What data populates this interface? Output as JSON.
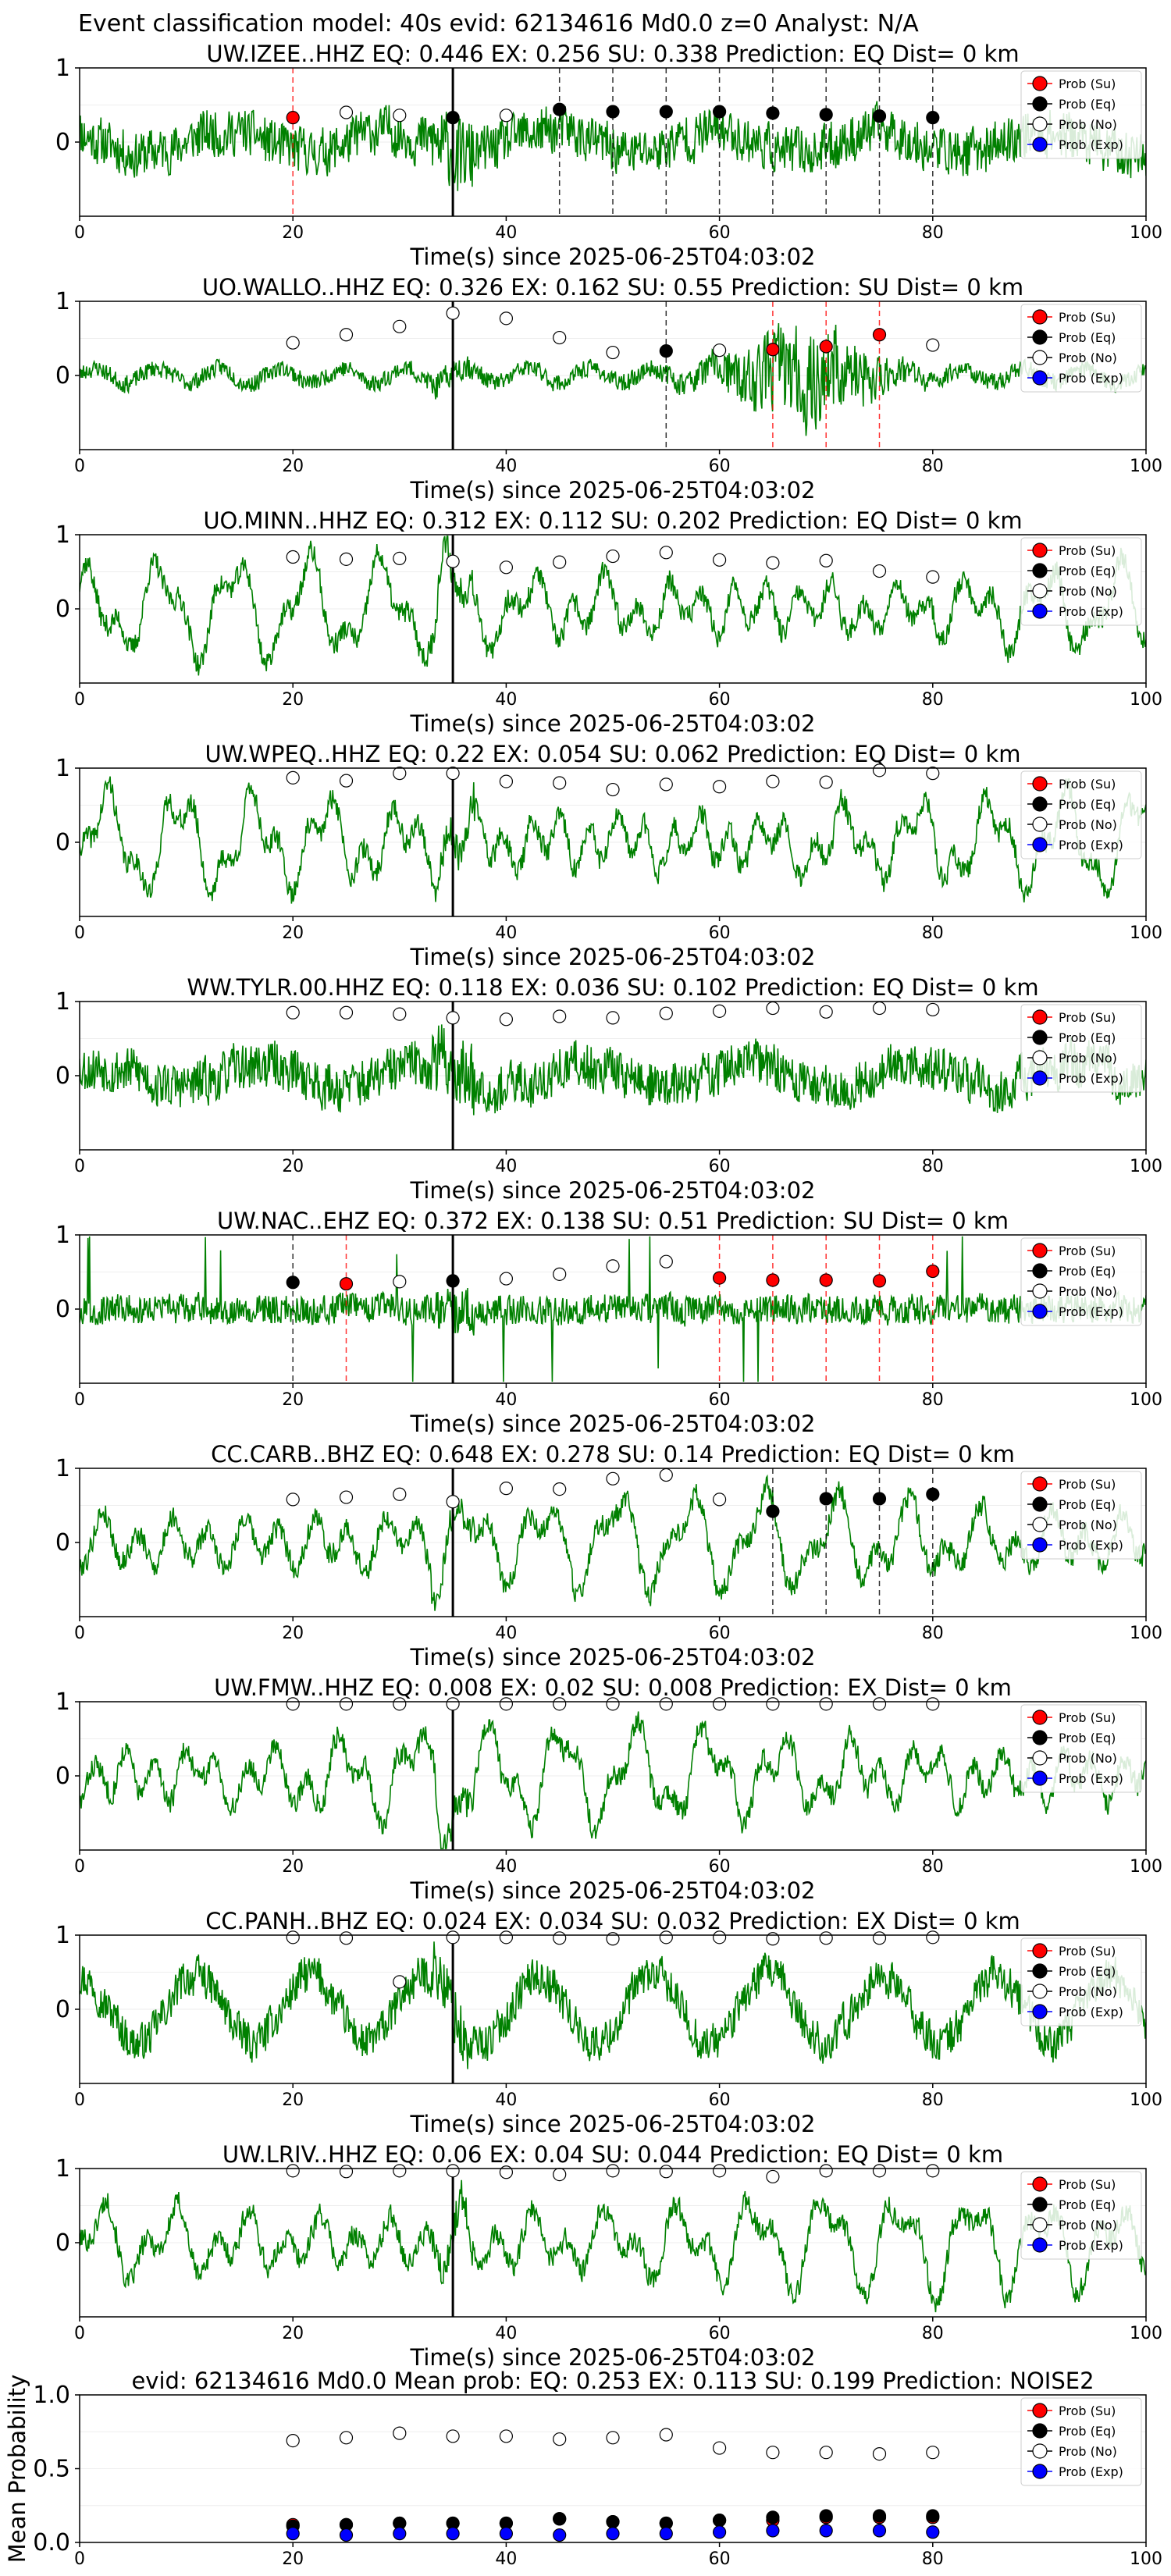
{
  "suptitle": "Event classification model: 40s evid: 62134616 Md0.0 z=0 Analyst: N/A",
  "colors": {
    "waveform": "#008000",
    "su_marker": "#ff0000",
    "eq_marker": "#000000",
    "no_marker": "#ffffff",
    "exp_marker": "#0000ff",
    "su_vline": "#ff0000",
    "eq_vline": "#000000",
    "origin_line": "#000000"
  },
  "chart_data": {
    "type": "line",
    "xlabel": "Time(s) since 2025-06-25T04:03:02",
    "xlim": [
      0,
      100
    ],
    "xticks": [
      0,
      20,
      40,
      60,
      80,
      100
    ],
    "ylim": [
      -1,
      1
    ],
    "yticks": [
      0,
      1
    ],
    "origin_time": 35,
    "window_times": [
      20,
      25,
      30,
      35,
      40,
      45,
      50,
      55,
      60,
      65,
      70,
      75,
      80
    ],
    "legend": {
      "placement": "upper-right",
      "entries": [
        "Prob (Su)",
        "Prob (Eq)",
        "Prob (No)",
        "Prob (Exp)"
      ]
    },
    "panels": [
      {
        "title": "UW.IZEE..HHZ   EQ: 0.446  EX: 0.256  SU: 0.338   Prediction: EQ    Dist= 0 km",
        "trace_seed": 11,
        "trace_style": "noisy",
        "markers": [
          {
            "t": 20,
            "p": 0.33,
            "cls": "su"
          },
          {
            "t": 25,
            "p": 0.4,
            "cls": "no"
          },
          {
            "t": 30,
            "p": 0.36,
            "cls": "no"
          },
          {
            "t": 35,
            "p": 0.33,
            "cls": "eq"
          },
          {
            "t": 40,
            "p": 0.36,
            "cls": "no"
          },
          {
            "t": 45,
            "p": 0.44,
            "cls": "eq"
          },
          {
            "t": 50,
            "p": 0.41,
            "cls": "eq"
          },
          {
            "t": 55,
            "p": 0.41,
            "cls": "eq"
          },
          {
            "t": 60,
            "p": 0.41,
            "cls": "eq"
          },
          {
            "t": 65,
            "p": 0.39,
            "cls": "eq"
          },
          {
            "t": 70,
            "p": 0.37,
            "cls": "eq"
          },
          {
            "t": 75,
            "p": 0.35,
            "cls": "eq"
          },
          {
            "t": 80,
            "p": 0.33,
            "cls": "eq"
          }
        ]
      },
      {
        "title": "UO.WALLO..HHZ   EQ: 0.326  EX: 0.162  SU: 0.55   Prediction: SU    Dist= 0 km",
        "trace_seed": 23,
        "trace_style": "burst",
        "markers": [
          {
            "t": 20,
            "p": 0.44,
            "cls": "no"
          },
          {
            "t": 25,
            "p": 0.55,
            "cls": "no"
          },
          {
            "t": 30,
            "p": 0.66,
            "cls": "no"
          },
          {
            "t": 35,
            "p": 0.84,
            "cls": "no"
          },
          {
            "t": 40,
            "p": 0.77,
            "cls": "no"
          },
          {
            "t": 45,
            "p": 0.51,
            "cls": "no"
          },
          {
            "t": 50,
            "p": 0.31,
            "cls": "no"
          },
          {
            "t": 55,
            "p": 0.33,
            "cls": "eq"
          },
          {
            "t": 60,
            "p": 0.34,
            "cls": "no"
          },
          {
            "t": 65,
            "p": 0.35,
            "cls": "su"
          },
          {
            "t": 70,
            "p": 0.39,
            "cls": "su"
          },
          {
            "t": 75,
            "p": 0.55,
            "cls": "su"
          },
          {
            "t": 80,
            "p": 0.41,
            "cls": "no"
          }
        ]
      },
      {
        "title": "UO.MINN..HHZ   EQ: 0.312  EX: 0.112  SU: 0.202   Prediction: EQ    Dist= 0 km",
        "trace_seed": 37,
        "trace_style": "smooth",
        "markers": [
          {
            "t": 20,
            "p": 0.7,
            "cls": "no"
          },
          {
            "t": 25,
            "p": 0.67,
            "cls": "no"
          },
          {
            "t": 30,
            "p": 0.68,
            "cls": "no"
          },
          {
            "t": 35,
            "p": 0.64,
            "cls": "no"
          },
          {
            "t": 40,
            "p": 0.56,
            "cls": "no"
          },
          {
            "t": 45,
            "p": 0.63,
            "cls": "no"
          },
          {
            "t": 50,
            "p": 0.71,
            "cls": "no"
          },
          {
            "t": 55,
            "p": 0.76,
            "cls": "no"
          },
          {
            "t": 60,
            "p": 0.66,
            "cls": "no"
          },
          {
            "t": 65,
            "p": 0.62,
            "cls": "no"
          },
          {
            "t": 70,
            "p": 0.65,
            "cls": "no"
          },
          {
            "t": 75,
            "p": 0.51,
            "cls": "no"
          },
          {
            "t": 80,
            "p": 0.43,
            "cls": "no"
          }
        ]
      },
      {
        "title": "UW.WPEQ..HHZ   EQ: 0.22  EX: 0.054  SU: 0.062   Prediction: EQ    Dist= 0 km",
        "trace_seed": 41,
        "trace_style": "smooth",
        "markers": [
          {
            "t": 20,
            "p": 0.87,
            "cls": "no"
          },
          {
            "t": 25,
            "p": 0.83,
            "cls": "no"
          },
          {
            "t": 30,
            "p": 0.93,
            "cls": "no"
          },
          {
            "t": 35,
            "p": 0.93,
            "cls": "no"
          },
          {
            "t": 40,
            "p": 0.82,
            "cls": "no"
          },
          {
            "t": 45,
            "p": 0.8,
            "cls": "no"
          },
          {
            "t": 50,
            "p": 0.71,
            "cls": "no"
          },
          {
            "t": 55,
            "p": 0.78,
            "cls": "no"
          },
          {
            "t": 60,
            "p": 0.75,
            "cls": "no"
          },
          {
            "t": 65,
            "p": 0.82,
            "cls": "no"
          },
          {
            "t": 70,
            "p": 0.81,
            "cls": "no"
          },
          {
            "t": 75,
            "p": 0.97,
            "cls": "no"
          },
          {
            "t": 80,
            "p": 0.93,
            "cls": "no"
          }
        ]
      },
      {
        "title": "WW.TYLR.00.HHZ   EQ: 0.118  EX: 0.036  SU: 0.102   Prediction: EQ    Dist= 0 km",
        "trace_seed": 53,
        "trace_style": "noisy",
        "markers": [
          {
            "t": 20,
            "p": 0.85,
            "cls": "no"
          },
          {
            "t": 25,
            "p": 0.85,
            "cls": "no"
          },
          {
            "t": 30,
            "p": 0.83,
            "cls": "no"
          },
          {
            "t": 35,
            "p": 0.78,
            "cls": "no"
          },
          {
            "t": 40,
            "p": 0.76,
            "cls": "no"
          },
          {
            "t": 45,
            "p": 0.8,
            "cls": "no"
          },
          {
            "t": 50,
            "p": 0.78,
            "cls": "no"
          },
          {
            "t": 55,
            "p": 0.84,
            "cls": "no"
          },
          {
            "t": 60,
            "p": 0.87,
            "cls": "no"
          },
          {
            "t": 65,
            "p": 0.91,
            "cls": "no"
          },
          {
            "t": 70,
            "p": 0.86,
            "cls": "no"
          },
          {
            "t": 75,
            "p": 0.91,
            "cls": "no"
          },
          {
            "t": 80,
            "p": 0.89,
            "cls": "no"
          }
        ]
      },
      {
        "title": "UW.NAC..EHZ   EQ: 0.372  EX: 0.138  SU: 0.51   Prediction: SU    Dist= 0 km",
        "trace_seed": 67,
        "trace_style": "spiky",
        "markers": [
          {
            "t": 20,
            "p": 0.36,
            "cls": "eq"
          },
          {
            "t": 25,
            "p": 0.34,
            "cls": "su"
          },
          {
            "t": 30,
            "p": 0.37,
            "cls": "no"
          },
          {
            "t": 35,
            "p": 0.38,
            "cls": "eq"
          },
          {
            "t": 40,
            "p": 0.41,
            "cls": "no"
          },
          {
            "t": 45,
            "p": 0.47,
            "cls": "no"
          },
          {
            "t": 50,
            "p": 0.58,
            "cls": "no"
          },
          {
            "t": 55,
            "p": 0.64,
            "cls": "no"
          },
          {
            "t": 60,
            "p": 0.42,
            "cls": "su"
          },
          {
            "t": 65,
            "p": 0.39,
            "cls": "su"
          },
          {
            "t": 70,
            "p": 0.39,
            "cls": "su"
          },
          {
            "t": 75,
            "p": 0.38,
            "cls": "su"
          },
          {
            "t": 80,
            "p": 0.51,
            "cls": "su"
          }
        ]
      },
      {
        "title": "CC.CARB..BHZ   EQ: 0.648  EX: 0.278  SU: 0.14   Prediction: EQ    Dist= 0 km",
        "trace_seed": 79,
        "trace_style": "smooth",
        "markers": [
          {
            "t": 20,
            "p": 0.58,
            "cls": "no"
          },
          {
            "t": 25,
            "p": 0.61,
            "cls": "no"
          },
          {
            "t": 30,
            "p": 0.65,
            "cls": "no"
          },
          {
            "t": 35,
            "p": 0.55,
            "cls": "no"
          },
          {
            "t": 40,
            "p": 0.73,
            "cls": "no"
          },
          {
            "t": 45,
            "p": 0.72,
            "cls": "no"
          },
          {
            "t": 50,
            "p": 0.86,
            "cls": "no"
          },
          {
            "t": 55,
            "p": 0.91,
            "cls": "no"
          },
          {
            "t": 60,
            "p": 0.58,
            "cls": "no"
          },
          {
            "t": 65,
            "p": 0.42,
            "cls": "eq"
          },
          {
            "t": 70,
            "p": 0.59,
            "cls": "eq"
          },
          {
            "t": 75,
            "p": 0.59,
            "cls": "eq"
          },
          {
            "t": 80,
            "p": 0.65,
            "cls": "eq"
          }
        ]
      },
      {
        "title": "UW.FMW..HHZ   EQ: 0.008  EX: 0.02  SU: 0.008   Prediction: EX    Dist= 0 km",
        "trace_seed": 83,
        "trace_style": "smooth",
        "markers": [
          {
            "t": 20,
            "p": 0.97,
            "cls": "no"
          },
          {
            "t": 25,
            "p": 0.97,
            "cls": "no"
          },
          {
            "t": 30,
            "p": 0.97,
            "cls": "no"
          },
          {
            "t": 35,
            "p": 0.97,
            "cls": "no"
          },
          {
            "t": 40,
            "p": 0.97,
            "cls": "no"
          },
          {
            "t": 45,
            "p": 0.97,
            "cls": "no"
          },
          {
            "t": 50,
            "p": 0.97,
            "cls": "no"
          },
          {
            "t": 55,
            "p": 0.97,
            "cls": "no"
          },
          {
            "t": 60,
            "p": 0.97,
            "cls": "no"
          },
          {
            "t": 65,
            "p": 0.97,
            "cls": "no"
          },
          {
            "t": 70,
            "p": 0.97,
            "cls": "no"
          },
          {
            "t": 75,
            "p": 0.97,
            "cls": "no"
          },
          {
            "t": 80,
            "p": 0.97,
            "cls": "no"
          }
        ]
      },
      {
        "title": "CC.PANH..BHZ   EQ: 0.024  EX: 0.034  SU: 0.032   Prediction: EX    Dist= 0 km",
        "trace_seed": 97,
        "trace_style": "mixed",
        "markers": [
          {
            "t": 20,
            "p": 0.97,
            "cls": "no"
          },
          {
            "t": 25,
            "p": 0.96,
            "cls": "no"
          },
          {
            "t": 30,
            "p": 0.37,
            "cls": "no"
          },
          {
            "t": 35,
            "p": 0.97,
            "cls": "no"
          },
          {
            "t": 40,
            "p": 0.97,
            "cls": "no"
          },
          {
            "t": 45,
            "p": 0.96,
            "cls": "no"
          },
          {
            "t": 50,
            "p": 0.95,
            "cls": "no"
          },
          {
            "t": 55,
            "p": 0.97,
            "cls": "no"
          },
          {
            "t": 60,
            "p": 0.97,
            "cls": "no"
          },
          {
            "t": 65,
            "p": 0.95,
            "cls": "no"
          },
          {
            "t": 70,
            "p": 0.96,
            "cls": "no"
          },
          {
            "t": 75,
            "p": 0.96,
            "cls": "no"
          },
          {
            "t": 80,
            "p": 0.97,
            "cls": "no"
          }
        ]
      },
      {
        "title": "UW.LRIV..HHZ   EQ: 0.06  EX: 0.04  SU: 0.044   Prediction: EQ    Dist= 0 km",
        "trace_seed": 101,
        "trace_style": "smooth",
        "markers": [
          {
            "t": 20,
            "p": 0.97,
            "cls": "no"
          },
          {
            "t": 25,
            "p": 0.96,
            "cls": "no"
          },
          {
            "t": 30,
            "p": 0.97,
            "cls": "no"
          },
          {
            "t": 35,
            "p": 0.97,
            "cls": "no"
          },
          {
            "t": 40,
            "p": 0.95,
            "cls": "no"
          },
          {
            "t": 45,
            "p": 0.92,
            "cls": "no"
          },
          {
            "t": 50,
            "p": 0.97,
            "cls": "no"
          },
          {
            "t": 55,
            "p": 0.96,
            "cls": "no"
          },
          {
            "t": 60,
            "p": 0.97,
            "cls": "no"
          },
          {
            "t": 65,
            "p": 0.89,
            "cls": "no"
          },
          {
            "t": 70,
            "p": 0.97,
            "cls": "no"
          },
          {
            "t": 75,
            "p": 0.97,
            "cls": "no"
          },
          {
            "t": 80,
            "p": 0.97,
            "cls": "no"
          }
        ]
      }
    ],
    "mean": {
      "title": "evid: 62134616  Md0.0   Mean prob:   EQ: 0.253  EX: 0.113  SU: 0.199   Prediction: NOISE2",
      "ylabel": "Mean Probability",
      "ylim": [
        0,
        1
      ],
      "yticks": [
        0.0,
        0.5,
        1.0
      ],
      "series": [
        {
          "name": "Prob (Su)",
          "cls": "su",
          "values": [
            0.12,
            0.12,
            0.13,
            0.13,
            0.13,
            0.16,
            0.14,
            0.13,
            0.15,
            0.15,
            0.17,
            0.17,
            0.17
          ]
        },
        {
          "name": "Prob (Eq)",
          "cls": "eq",
          "values": [
            0.11,
            0.12,
            0.13,
            0.13,
            0.13,
            0.16,
            0.14,
            0.13,
            0.15,
            0.17,
            0.18,
            0.18,
            0.18
          ]
        },
        {
          "name": "Prob (No)",
          "cls": "no",
          "values": [
            0.69,
            0.71,
            0.74,
            0.72,
            0.72,
            0.7,
            0.71,
            0.73,
            0.64,
            0.61,
            0.61,
            0.6,
            0.61
          ]
        },
        {
          "name": "Prob (Exp)",
          "cls": "exp",
          "values": [
            0.06,
            0.05,
            0.06,
            0.06,
            0.06,
            0.05,
            0.06,
            0.06,
            0.07,
            0.08,
            0.08,
            0.08,
            0.07
          ]
        }
      ]
    }
  }
}
